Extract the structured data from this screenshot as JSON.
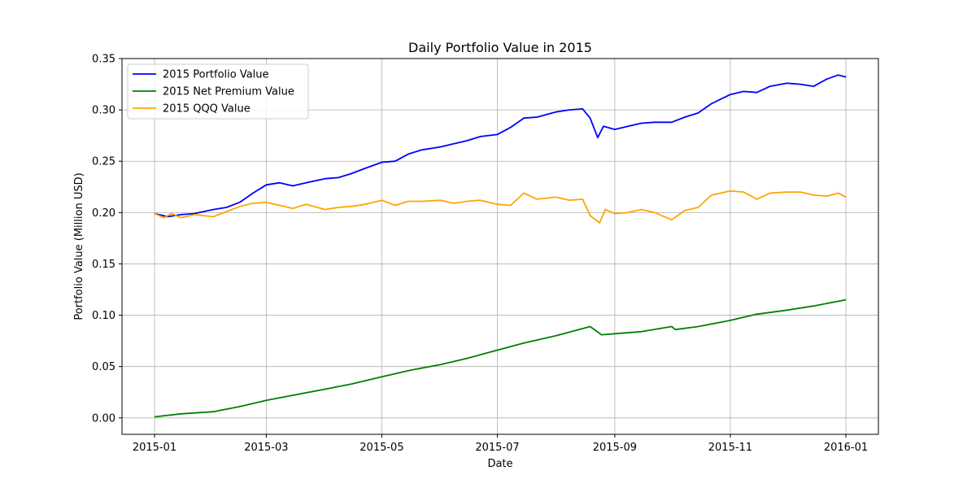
{
  "chart_data": {
    "type": "line",
    "title": "Daily Portfolio Value in 2015",
    "xlabel": "Date",
    "ylabel": "Portfolio Value (Million USD)",
    "xlim": [
      "2015-01-01",
      "2016-01-01"
    ],
    "ylim": [
      -0.016,
      0.35
    ],
    "x_ticks": [
      "2015-01",
      "2015-03",
      "2015-05",
      "2015-07",
      "2015-09",
      "2015-11",
      "2016-01"
    ],
    "y_ticks": [
      "0.00",
      "0.05",
      "0.10",
      "0.15",
      "0.20",
      "0.25",
      "0.30",
      "0.35"
    ],
    "grid": true,
    "legend_position": "top-left",
    "series": [
      {
        "name": "2015 Portfolio Value",
        "color": "#0000ff",
        "points": [
          [
            "2015-01-01",
            0.199
          ],
          [
            "2015-01-08",
            0.196
          ],
          [
            "2015-01-15",
            0.198
          ],
          [
            "2015-01-22",
            0.199
          ],
          [
            "2015-02-01",
            0.203
          ],
          [
            "2015-02-08",
            0.205
          ],
          [
            "2015-02-15",
            0.21
          ],
          [
            "2015-02-22",
            0.219
          ],
          [
            "2015-03-01",
            0.227
          ],
          [
            "2015-03-08",
            0.229
          ],
          [
            "2015-03-15",
            0.226
          ],
          [
            "2015-03-22",
            0.229
          ],
          [
            "2015-04-01",
            0.233
          ],
          [
            "2015-04-08",
            0.234
          ],
          [
            "2015-04-15",
            0.238
          ],
          [
            "2015-04-22",
            0.243
          ],
          [
            "2015-05-01",
            0.249
          ],
          [
            "2015-05-08",
            0.25
          ],
          [
            "2015-05-15",
            0.257
          ],
          [
            "2015-05-22",
            0.261
          ],
          [
            "2015-06-01",
            0.264
          ],
          [
            "2015-06-08",
            0.267
          ],
          [
            "2015-06-15",
            0.27
          ],
          [
            "2015-06-22",
            0.274
          ],
          [
            "2015-07-01",
            0.276
          ],
          [
            "2015-07-08",
            0.283
          ],
          [
            "2015-07-15",
            0.292
          ],
          [
            "2015-07-22",
            0.293
          ],
          [
            "2015-08-01",
            0.298
          ],
          [
            "2015-08-08",
            0.3
          ],
          [
            "2015-08-15",
            0.301
          ],
          [
            "2015-08-19",
            0.292
          ],
          [
            "2015-08-23",
            0.273
          ],
          [
            "2015-08-26",
            0.284
          ],
          [
            "2015-09-01",
            0.281
          ],
          [
            "2015-09-08",
            0.284
          ],
          [
            "2015-09-15",
            0.287
          ],
          [
            "2015-09-22",
            0.288
          ],
          [
            "2015-10-01",
            0.288
          ],
          [
            "2015-10-08",
            0.293
          ],
          [
            "2015-10-15",
            0.297
          ],
          [
            "2015-10-22",
            0.306
          ],
          [
            "2015-11-01",
            0.315
          ],
          [
            "2015-11-08",
            0.318
          ],
          [
            "2015-11-15",
            0.317
          ],
          [
            "2015-11-22",
            0.323
          ],
          [
            "2015-12-01",
            0.326
          ],
          [
            "2015-12-08",
            0.325
          ],
          [
            "2015-12-15",
            0.323
          ],
          [
            "2015-12-22",
            0.33
          ],
          [
            "2015-12-28",
            0.334
          ],
          [
            "2016-01-01",
            0.332
          ]
        ]
      },
      {
        "name": "2015 Net Premium Value",
        "color": "#008000",
        "points": [
          [
            "2015-01-01",
            0.001
          ],
          [
            "2015-01-15",
            0.004
          ],
          [
            "2015-02-01",
            0.006
          ],
          [
            "2015-02-15",
            0.011
          ],
          [
            "2015-03-01",
            0.017
          ],
          [
            "2015-03-15",
            0.022
          ],
          [
            "2015-04-01",
            0.028
          ],
          [
            "2015-04-15",
            0.033
          ],
          [
            "2015-05-01",
            0.04
          ],
          [
            "2015-05-15",
            0.046
          ],
          [
            "2015-06-01",
            0.052
          ],
          [
            "2015-06-15",
            0.058
          ],
          [
            "2015-07-01",
            0.066
          ],
          [
            "2015-07-15",
            0.073
          ],
          [
            "2015-08-01",
            0.08
          ],
          [
            "2015-08-15",
            0.087
          ],
          [
            "2015-08-19",
            0.089
          ],
          [
            "2015-08-25",
            0.081
          ],
          [
            "2015-09-01",
            0.082
          ],
          [
            "2015-09-15",
            0.084
          ],
          [
            "2015-10-01",
            0.089
          ],
          [
            "2015-10-03",
            0.086
          ],
          [
            "2015-10-15",
            0.089
          ],
          [
            "2015-11-01",
            0.095
          ],
          [
            "2015-11-15",
            0.101
          ],
          [
            "2015-12-01",
            0.105
          ],
          [
            "2015-12-15",
            0.109
          ],
          [
            "2016-01-01",
            0.115
          ]
        ]
      },
      {
        "name": "2015 QQQ Value",
        "color": "#ffa500",
        "points": [
          [
            "2015-01-01",
            0.199
          ],
          [
            "2015-01-06",
            0.195
          ],
          [
            "2015-01-10",
            0.199
          ],
          [
            "2015-01-15",
            0.195
          ],
          [
            "2015-01-22",
            0.198
          ],
          [
            "2015-02-01",
            0.196
          ],
          [
            "2015-02-08",
            0.201
          ],
          [
            "2015-02-15",
            0.206
          ],
          [
            "2015-02-22",
            0.209
          ],
          [
            "2015-03-01",
            0.21
          ],
          [
            "2015-03-08",
            0.207
          ],
          [
            "2015-03-15",
            0.204
          ],
          [
            "2015-03-22",
            0.208
          ],
          [
            "2015-04-01",
            0.203
          ],
          [
            "2015-04-08",
            0.205
          ],
          [
            "2015-04-15",
            0.206
          ],
          [
            "2015-04-22",
            0.208
          ],
          [
            "2015-05-01",
            0.212
          ],
          [
            "2015-05-08",
            0.207
          ],
          [
            "2015-05-15",
            0.211
          ],
          [
            "2015-05-22",
            0.211
          ],
          [
            "2015-06-01",
            0.212
          ],
          [
            "2015-06-08",
            0.209
          ],
          [
            "2015-06-15",
            0.211
          ],
          [
            "2015-06-22",
            0.212
          ],
          [
            "2015-07-01",
            0.208
          ],
          [
            "2015-07-08",
            0.207
          ],
          [
            "2015-07-15",
            0.219
          ],
          [
            "2015-07-22",
            0.213
          ],
          [
            "2015-08-01",
            0.215
          ],
          [
            "2015-08-08",
            0.212
          ],
          [
            "2015-08-15",
            0.213
          ],
          [
            "2015-08-19",
            0.197
          ],
          [
            "2015-08-24",
            0.19
          ],
          [
            "2015-08-27",
            0.203
          ],
          [
            "2015-09-01",
            0.199
          ],
          [
            "2015-09-08",
            0.2
          ],
          [
            "2015-09-15",
            0.203
          ],
          [
            "2015-09-22",
            0.2
          ],
          [
            "2015-10-01",
            0.193
          ],
          [
            "2015-10-08",
            0.202
          ],
          [
            "2015-10-15",
            0.205
          ],
          [
            "2015-10-22",
            0.217
          ],
          [
            "2015-11-01",
            0.221
          ],
          [
            "2015-11-08",
            0.22
          ],
          [
            "2015-11-15",
            0.213
          ],
          [
            "2015-11-22",
            0.219
          ],
          [
            "2015-12-01",
            0.22
          ],
          [
            "2015-12-08",
            0.22
          ],
          [
            "2015-12-15",
            0.217
          ],
          [
            "2015-12-22",
            0.216
          ],
          [
            "2015-12-28",
            0.219
          ],
          [
            "2016-01-01",
            0.215
          ]
        ]
      }
    ]
  }
}
